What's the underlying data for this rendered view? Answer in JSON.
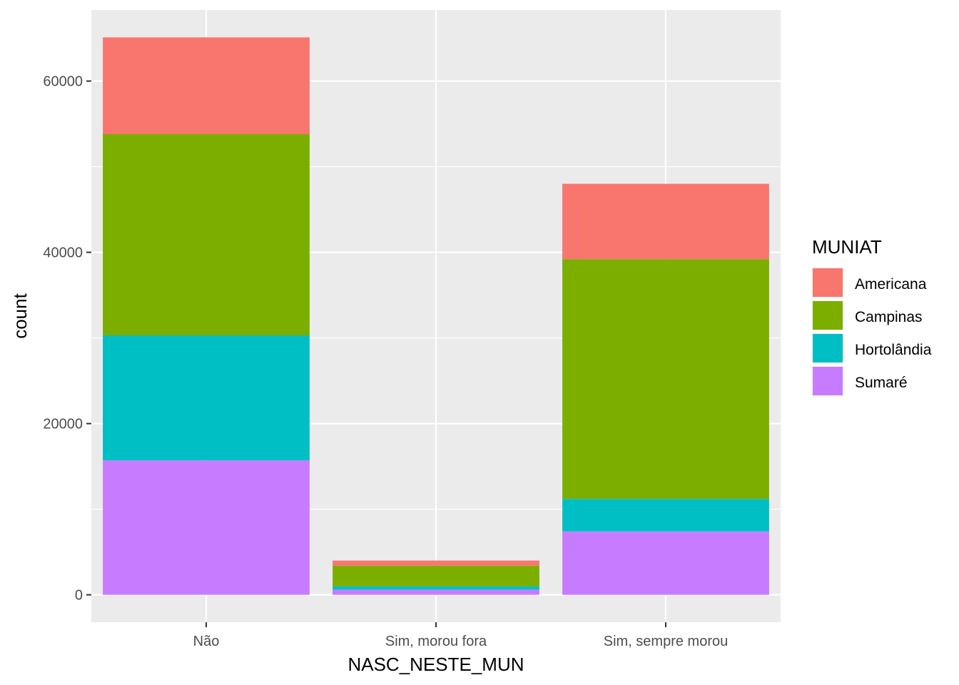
{
  "chart_data": {
    "type": "bar",
    "stacked": true,
    "categories": [
      "Não",
      "Sim, morou fora",
      "Sim, sempre morou"
    ],
    "series": [
      {
        "name": "Americana",
        "color": "#F8766D",
        "values": [
          11300,
          600,
          8800
        ]
      },
      {
        "name": "Campinas",
        "color": "#7CAE00",
        "values": [
          23500,
          2400,
          28000
        ]
      },
      {
        "name": "Hortolândia",
        "color": "#00BFC4",
        "values": [
          14600,
          400,
          3800
        ]
      },
      {
        "name": "Sumaré",
        "color": "#C77CFF",
        "values": [
          15700,
          600,
          7400
        ]
      }
    ],
    "xlabel": "NASC_NESTE_MUN",
    "ylabel": "count",
    "ylim": [
      -3200,
      68300
    ],
    "yticks": [
      0,
      20000,
      40000,
      60000
    ],
    "ytick_labels": [
      "0",
      "20000",
      "40000",
      "60000"
    ],
    "grid": true,
    "legend": {
      "title": "MUNIAT",
      "placement": "right"
    },
    "panel_background": "#EBEBEB",
    "gridline_color": "#FFFFFF"
  }
}
